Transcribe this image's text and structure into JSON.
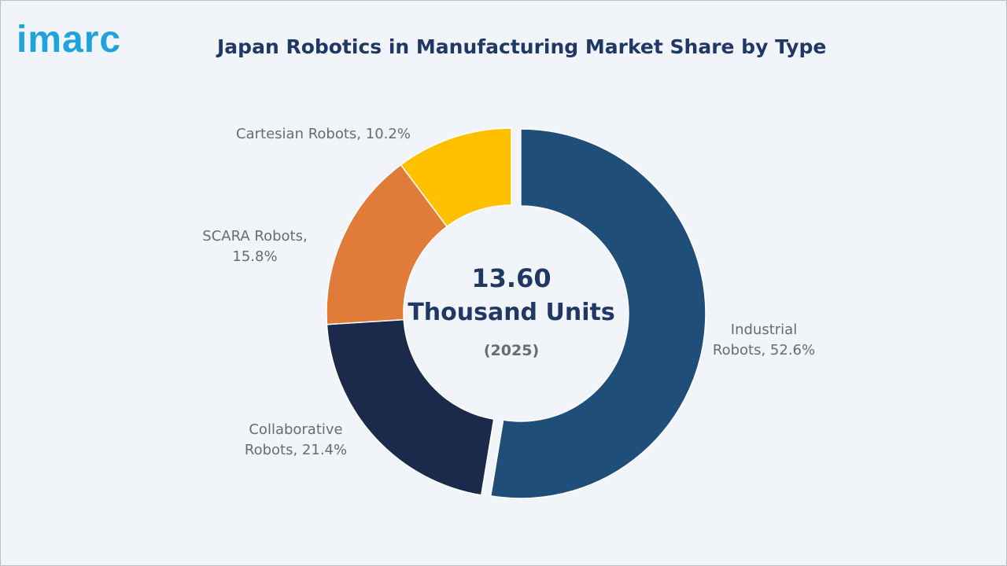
{
  "logo": "imarc",
  "chart_data": {
    "type": "donut",
    "title": "Japan Robotics in Manufacturing Market Share by Type",
    "values": [
      52.6,
      21.4,
      15.8,
      10.2
    ],
    "value_labels": [
      "Industrial Robots, 52.6%",
      "Collaborative Robots, 21.4%",
      "SCARA Robots, 15.8%",
      "Cartesian Robots, 10.2%"
    ],
    "colors": [
      "#1f4e79",
      "#1b2a4a",
      "#e07b39",
      "#ffc000"
    ],
    "center_value": "13.60",
    "center_unit": "Thousand Units",
    "center_year": "(2025)"
  }
}
